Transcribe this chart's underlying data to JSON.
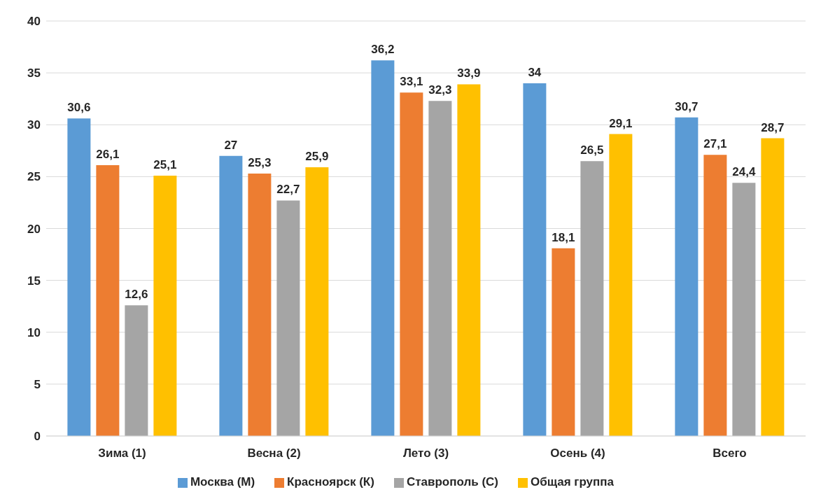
{
  "chart_data": {
    "type": "bar",
    "categories": [
      "Зима (1)",
      "Весна (2)",
      "Лето (3)",
      "Осень (4)",
      "Всего"
    ],
    "series": [
      {
        "name": "Москва (М)",
        "color": "#5b9bd5",
        "values": [
          30.6,
          27,
          36.2,
          34,
          30.7
        ],
        "value_labels": [
          "30,6",
          "27",
          "36,2",
          "34",
          "30,7"
        ]
      },
      {
        "name": "Красноярск (К)",
        "color": "#ed7d31",
        "values": [
          26.1,
          25.3,
          33.1,
          18.1,
          27.1
        ],
        "value_labels": [
          "26,1",
          "25,3",
          "33,1",
          "18,1",
          "27,1"
        ]
      },
      {
        "name": "Ставрополь (С)",
        "color": "#a5a5a5",
        "values": [
          12.6,
          22.7,
          32.3,
          26.5,
          24.4
        ],
        "value_labels": [
          "12,6",
          "22,7",
          "32,3",
          "26,5",
          "24,4"
        ]
      },
      {
        "name": "Общая группа",
        "color": "#ffc000",
        "values": [
          25.1,
          25.9,
          33.9,
          29.1,
          28.7
        ],
        "value_labels": [
          "25,1",
          "25,9",
          "33,9",
          "29,1",
          "28,7"
        ]
      }
    ],
    "ylim": [
      0,
      40
    ],
    "yticks": [
      0,
      5,
      10,
      15,
      20,
      25,
      30,
      35,
      40
    ],
    "grid": "y",
    "legend": "bottom"
  }
}
